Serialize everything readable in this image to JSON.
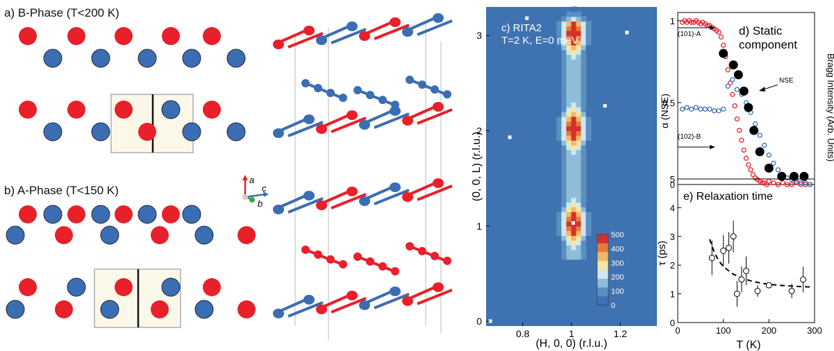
{
  "colors": {
    "red": "#e8202a",
    "blue": "#3b6db3",
    "map_bg": "#3f72b0",
    "cell_fill": "#fbf8ea"
  },
  "panel_a": {
    "label": "a) B-Phase (T<200 K)"
  },
  "panel_b": {
    "label": "b) A-Phase (T<150 K)"
  },
  "axes_triad": {
    "a": "a",
    "b": "b",
    "c": "c"
  },
  "panel_c": {
    "title_line1": "c) RITA2",
    "title_line2": "T=2 K, E=0 meV",
    "xlabel": "(H, 0, 0) (r.l.u.)",
    "ylabel": "(0, 0, L) (r.l.u.)",
    "xticks": [
      "0.8",
      "1",
      "1.2"
    ],
    "yticks": [
      "0",
      "1",
      "2",
      "3"
    ],
    "colorbar_ticks": [
      "500",
      "400",
      "300",
      "200",
      "100",
      "0"
    ]
  },
  "panel_d": {
    "title_line1": "d) Static",
    "title_line2": "component",
    "ylabel": "α (NSE)",
    "ylabel_right": "Bragg Intensity (Arb. Units)",
    "yticks": [
      "0",
      "0.5",
      "1"
    ],
    "annotations": {
      "a": "(101)-A",
      "b": "(102)-B",
      "nse": "NSE"
    }
  },
  "panel_e": {
    "title": "e) Relaxation time",
    "ylabel": "τ (ps)",
    "xlabel": "T (K)",
    "xticks": [
      "0",
      "100",
      "200",
      "300"
    ],
    "yticks": [
      "0",
      "1",
      "2",
      "3",
      "4",
      "5"
    ]
  },
  "chart_data": [
    {
      "type": "heatmap",
      "title": "c) RITA2 T=2 K, E=0 meV",
      "xlabel": "(H, 0, 0) (r.l.u.)",
      "ylabel": "(0, 0, L) (r.l.u.)",
      "xlim": [
        0.65,
        1.35
      ],
      "ylim": [
        -0.05,
        3.3
      ],
      "zlim": [
        0,
        500
      ],
      "peaks": [
        {
          "H": 1.0,
          "L": 1.0,
          "intensity": 500
        },
        {
          "H": 1.0,
          "L": 2.0,
          "intensity": 500
        },
        {
          "H": 1.0,
          "L": 3.0,
          "intensity": 500
        }
      ]
    },
    {
      "type": "scatter",
      "title": "d) Static component",
      "ylabel": "α (NSE)",
      "xlim": [
        0,
        300
      ],
      "ylim": [
        0,
        1.05
      ],
      "series": [
        {
          "name": "(101)-A",
          "x": [
            10,
            15,
            20,
            25,
            30,
            35,
            40,
            45,
            50,
            55,
            60,
            65,
            70,
            75,
            80,
            85,
            90,
            95,
            100,
            105,
            110,
            115,
            120,
            125,
            130,
            135,
            140,
            145,
            150,
            155,
            160,
            165,
            170,
            175,
            180,
            185,
            190,
            195,
            200,
            210,
            220,
            230,
            240,
            250,
            260,
            270,
            280,
            290
          ],
          "y": [
            0.99,
            1.0,
            0.99,
            1.0,
            0.99,
            0.99,
            1.0,
            0.99,
            0.98,
            0.99,
            0.98,
            0.97,
            0.97,
            0.96,
            0.95,
            0.94,
            0.93,
            0.9,
            0.85,
            0.78,
            0.7,
            0.62,
            0.55,
            0.48,
            0.4,
            0.33,
            0.27,
            0.21,
            0.16,
            0.12,
            0.09,
            0.06,
            0.04,
            0.03,
            0.02,
            0.01,
            0.01,
            0.0,
            0.02,
            0.01,
            0.0,
            0.01,
            0.0,
            0.0,
            0.01,
            0.0,
            0.0,
            0.0
          ]
        },
        {
          "name": "(102)-B",
          "x": [
            10,
            20,
            30,
            40,
            50,
            60,
            70,
            80,
            90,
            100,
            110,
            120,
            130,
            140,
            150,
            160,
            170,
            180,
            190,
            200,
            210,
            220,
            230,
            240,
            250,
            260,
            270,
            280,
            290
          ],
          "y": [
            0.46,
            0.47,
            0.46,
            0.47,
            0.46,
            0.46,
            0.46,
            0.45,
            0.45,
            0.46,
            0.6,
            0.64,
            0.58,
            0.55,
            0.5,
            0.44,
            0.37,
            0.3,
            0.24,
            0.18,
            0.13,
            0.09,
            0.06,
            0.04,
            0.03,
            0.02,
            0.01,
            0.01,
            0.0
          ]
        },
        {
          "name": "NSE",
          "x": [
            100,
            122,
            133,
            145,
            155,
            167,
            180,
            200,
            228,
            255,
            277
          ],
          "y": [
            0.8,
            0.73,
            0.67,
            0.57,
            0.47,
            0.33,
            0.2,
            0.1,
            0.05,
            0.05,
            0.05
          ]
        }
      ]
    },
    {
      "type": "scatter",
      "title": "e) Relaxation time",
      "xlabel": "T (K)",
      "ylabel": "τ (ps)",
      "xlim": [
        0,
        300
      ],
      "ylim": [
        0,
        5
      ],
      "points": [
        {
          "x": 75,
          "y": 2.25,
          "err": 0.6
        },
        {
          "x": 100,
          "y": 2.5,
          "err": 0.55
        },
        {
          "x": 112,
          "y": 2.6,
          "err": 0.55
        },
        {
          "x": 122,
          "y": 3.0,
          "err": 0.55
        },
        {
          "x": 130,
          "y": 1.0,
          "err": 0.45
        },
        {
          "x": 140,
          "y": 1.5,
          "err": 0.45
        },
        {
          "x": 150,
          "y": 1.8,
          "err": 0.5
        },
        {
          "x": 175,
          "y": 1.1,
          "err": 0.2
        },
        {
          "x": 200,
          "y": 1.3,
          "err": 0.1
        },
        {
          "x": 250,
          "y": 1.1,
          "err": 0.25
        },
        {
          "x": 275,
          "y": 1.5,
          "err": 0.45
        }
      ],
      "fit": {
        "x": [
          70,
          80,
          90,
          100,
          120,
          140,
          160,
          180,
          200,
          230,
          260,
          290
        ],
        "y": [
          2.9,
          2.45,
          2.15,
          1.95,
          1.7,
          1.55,
          1.45,
          1.38,
          1.33,
          1.29,
          1.26,
          1.24
        ]
      }
    }
  ]
}
